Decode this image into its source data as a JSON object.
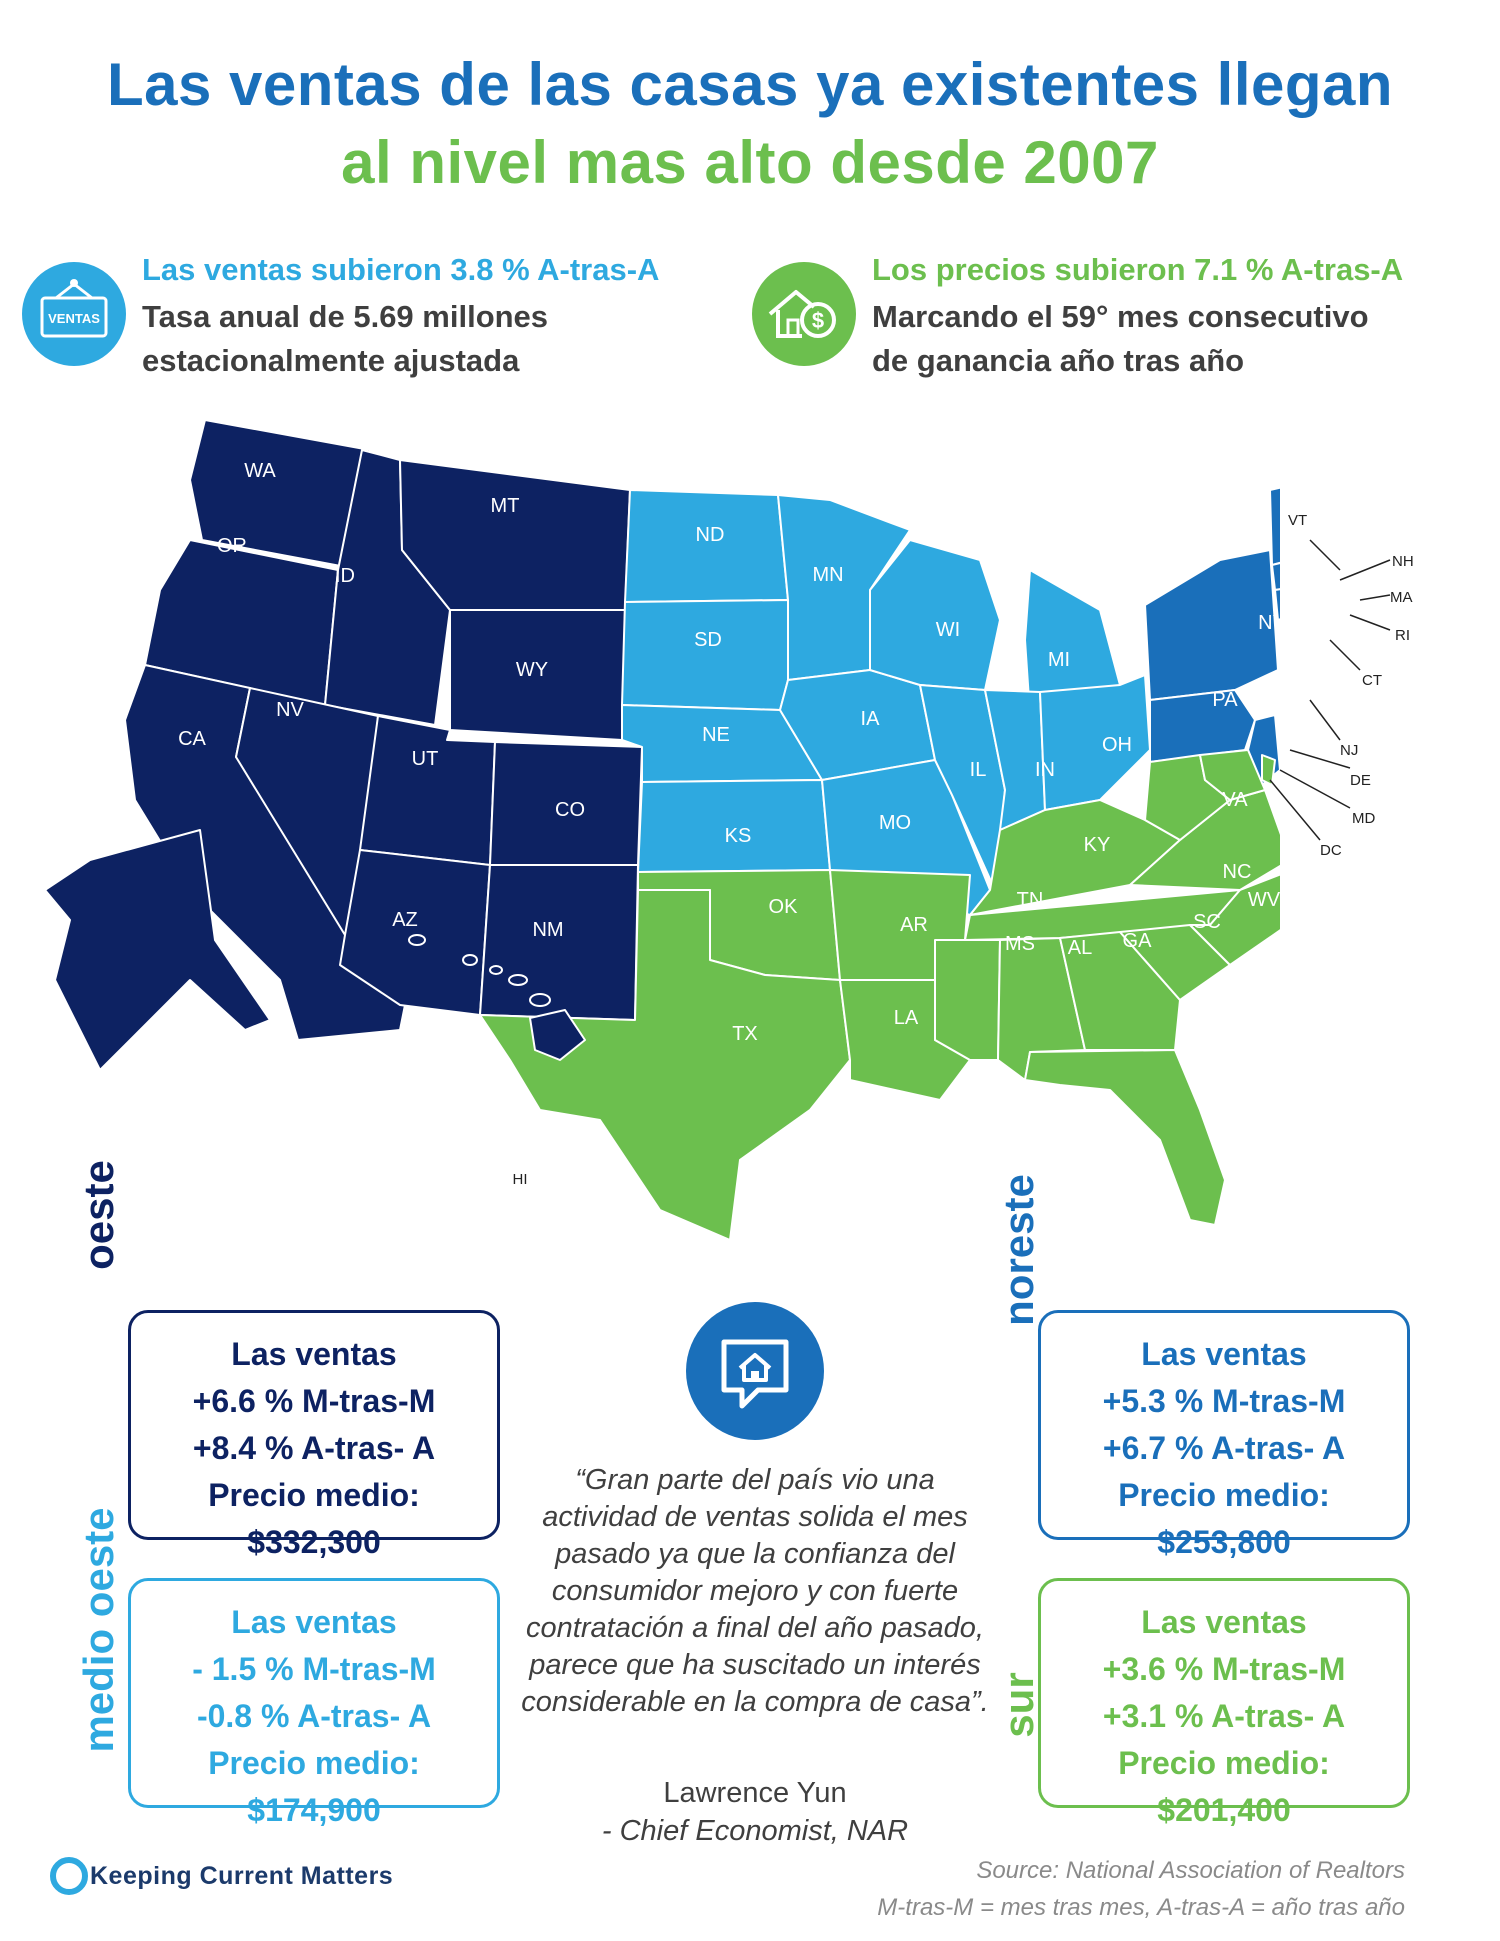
{
  "title": {
    "line1": "Las ventas de las casas ya existentes llegan",
    "line2": "al nivel mas alto desde 2007"
  },
  "stats": {
    "sales": {
      "icon": "for-sale-sign-icon",
      "icon_label": "VENTAS",
      "headline": "Las ventas subieron 3.8 % A-tras-A",
      "line1": "Tasa anual de 5.69 millones",
      "line2": "estacionalmente ajustada"
    },
    "prices": {
      "icon": "house-dollar-icon",
      "headline": "Los precios subieron 7.1 % A-tras-A",
      "line1": "Marcando el 59° mes consecutivo",
      "line2": "de ganancia año tras año"
    }
  },
  "colors": {
    "west": "#0d2262",
    "midwest": "#2ea9e0",
    "northeast": "#1a6fba",
    "south": "#6cbf4e"
  },
  "map_states": {
    "west": [
      "WA",
      "OR",
      "CA",
      "ID",
      "NV",
      "MT",
      "WY",
      "UT",
      "CO",
      "AZ",
      "NM",
      "AK",
      "HI"
    ],
    "midwest": [
      "ND",
      "SD",
      "NE",
      "KS",
      "MN",
      "IA",
      "MO",
      "WI",
      "IL",
      "MI",
      "IN",
      "OH"
    ],
    "northeast": [
      "ME",
      "VT",
      "NH",
      "MA",
      "RI",
      "CT",
      "NY",
      "PA",
      "NJ"
    ],
    "south": [
      "OK",
      "TX",
      "AR",
      "LA",
      "MS",
      "AL",
      "TN",
      "KY",
      "GA",
      "FL",
      "SC",
      "NC",
      "VA",
      "WV",
      "DE",
      "MD",
      "DC"
    ]
  },
  "regions": {
    "west": {
      "name": "oeste",
      "sales_label": "Las ventas",
      "mom": "+6.6 % M-tras-M",
      "yoy": "+8.4 % A-tras- A",
      "price_label": "Precio medio:",
      "price": "$332,300"
    },
    "midwest": {
      "name": "medio oeste",
      "sales_label": "Las ventas",
      "mom": "- 1.5 % M-tras-M",
      "yoy": "-0.8 % A-tras- A",
      "price_label": "Precio medio:",
      "price": "$174,900"
    },
    "northeast": {
      "name": "noreste",
      "sales_label": "Las ventas",
      "mom": "+5.3 % M-tras-M",
      "yoy": "+6.7 % A-tras- A",
      "price_label": "Precio medio:",
      "price": "$253,800"
    },
    "south": {
      "name": "sur",
      "sales_label": "Las ventas",
      "mom": "+3.6 % M-tras-M",
      "yoy": "+3.1 % A-tras- A",
      "price_label": "Precio medio:",
      "price": "$201,400"
    }
  },
  "quote": {
    "icon": "house-speech-bubble-icon",
    "text": "“Gran parte del país vio una actividad de ventas solida el mes pasado ya que la confianza del consumidor mejoro y con fuerte contratación a final del año pasado, parece que ha suscitado un interés considerable en la compra de casa”.",
    "author": "Lawrence Yun",
    "role": "- Chief Economist, NAR"
  },
  "footer": {
    "brand": "Keeping Current Matters",
    "source": "Source: National Association of Realtors",
    "legend": "M-tras-M = mes tras mes, A-tras-A = año tras año"
  }
}
